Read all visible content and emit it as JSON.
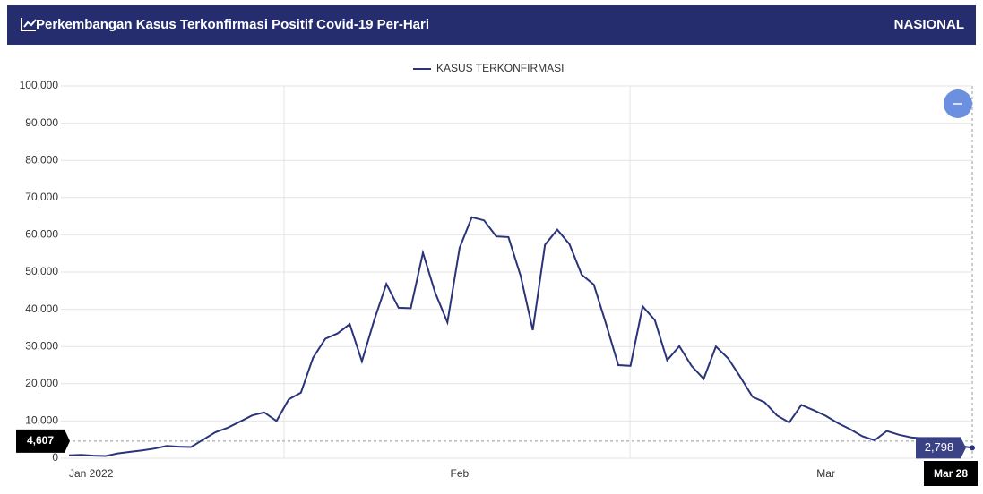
{
  "header": {
    "title": "Perkembangan Kasus Terkonfirmasi Positif Covid-19 Per-Hari",
    "region": "NASIONAL"
  },
  "chart_data": {
    "type": "line",
    "categories": [
      "Jan 2022",
      null,
      null,
      null,
      null,
      null,
      null,
      null,
      null,
      null,
      null,
      null,
      null,
      null,
      null,
      null,
      null,
      null,
      null,
      null,
      null,
      null,
      null,
      null,
      null,
      null,
      null,
      null,
      null,
      null,
      null,
      null,
      "Feb",
      null,
      null,
      null,
      null,
      null,
      null,
      null,
      null,
      null,
      null,
      null,
      null,
      null,
      null,
      null,
      null,
      null,
      null,
      null,
      null,
      null,
      null,
      null,
      null,
      null,
      null,
      null,
      null,
      null,
      "Mar",
      null,
      null,
      null,
      null,
      null,
      null,
      null,
      null,
      null,
      null,
      null,
      "Mar 28"
    ],
    "series": [
      {
        "name": "KASUS TERKONFIRMASI",
        "color": "#2b3478",
        "values": [
          800,
          900,
          700,
          600,
          1300,
          1700,
          2100,
          2600,
          3300,
          3100,
          3000,
          5000,
          7000,
          8200,
          9800,
          11500,
          12300,
          10000,
          15800,
          17600,
          27000,
          32100,
          33500,
          36000,
          26000,
          37000,
          46800,
          40400,
          40300,
          55200,
          44500,
          36500,
          56500,
          64700,
          63900,
          59600,
          59400,
          49000,
          34400,
          57300,
          61400,
          57500,
          49300,
          46600,
          36000,
          25000,
          24800,
          40800,
          37100,
          26300,
          30100,
          24800,
          21300,
          30000,
          26800,
          21800,
          16500,
          15000,
          11500,
          9600,
          14300,
          12900,
          11400,
          9400,
          7800,
          5900,
          4800,
          7300,
          6300,
          5600,
          5300,
          4600,
          3900,
          3300,
          2798
        ]
      }
    ],
    "tooltip_label": "2,798",
    "crosshair_y": {
      "value": 4607,
      "label": "4,607"
    },
    "ylim": [
      0,
      100000
    ],
    "yticks": [
      0,
      {
        "value": 10000,
        "label": "10,000"
      },
      {
        "value": 20000,
        "label": "20,000"
      },
      {
        "value": 30000,
        "label": "30,000"
      },
      {
        "value": 40000,
        "label": "40,000"
      },
      {
        "value": 50000,
        "label": "50,000"
      },
      {
        "value": 60000,
        "label": "60,000"
      },
      {
        "value": 70000,
        "label": "70,000"
      },
      {
        "value": 80000,
        "label": "80,000"
      },
      {
        "value": 90000,
        "label": "90,000"
      },
      {
        "value": 100000,
        "label": "100,000"
      }
    ],
    "grid": true,
    "legend": "top"
  }
}
